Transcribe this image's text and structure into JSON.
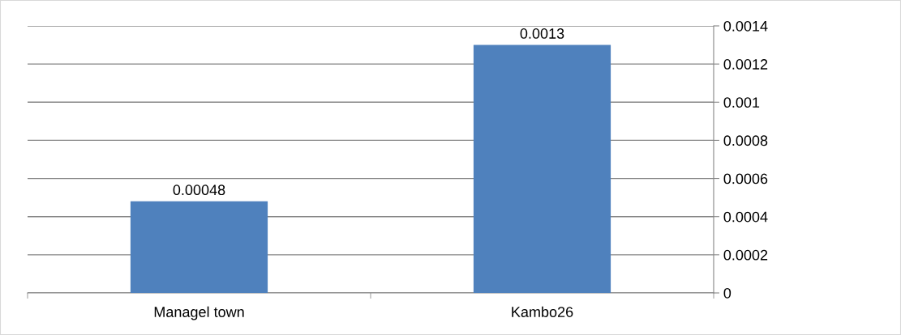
{
  "chart_data": {
    "type": "bar",
    "categories": [
      "Managel town",
      "Kambo26"
    ],
    "values": [
      0.00048,
      0.0013
    ],
    "color": "#4f81bd",
    "ylim": [
      0,
      0.0014
    ],
    "yticks": [
      0,
      0.0002,
      0.0004,
      0.0006,
      0.0008,
      0.001,
      0.0012,
      0.0014
    ],
    "grid": "y",
    "data_labels": true
  }
}
